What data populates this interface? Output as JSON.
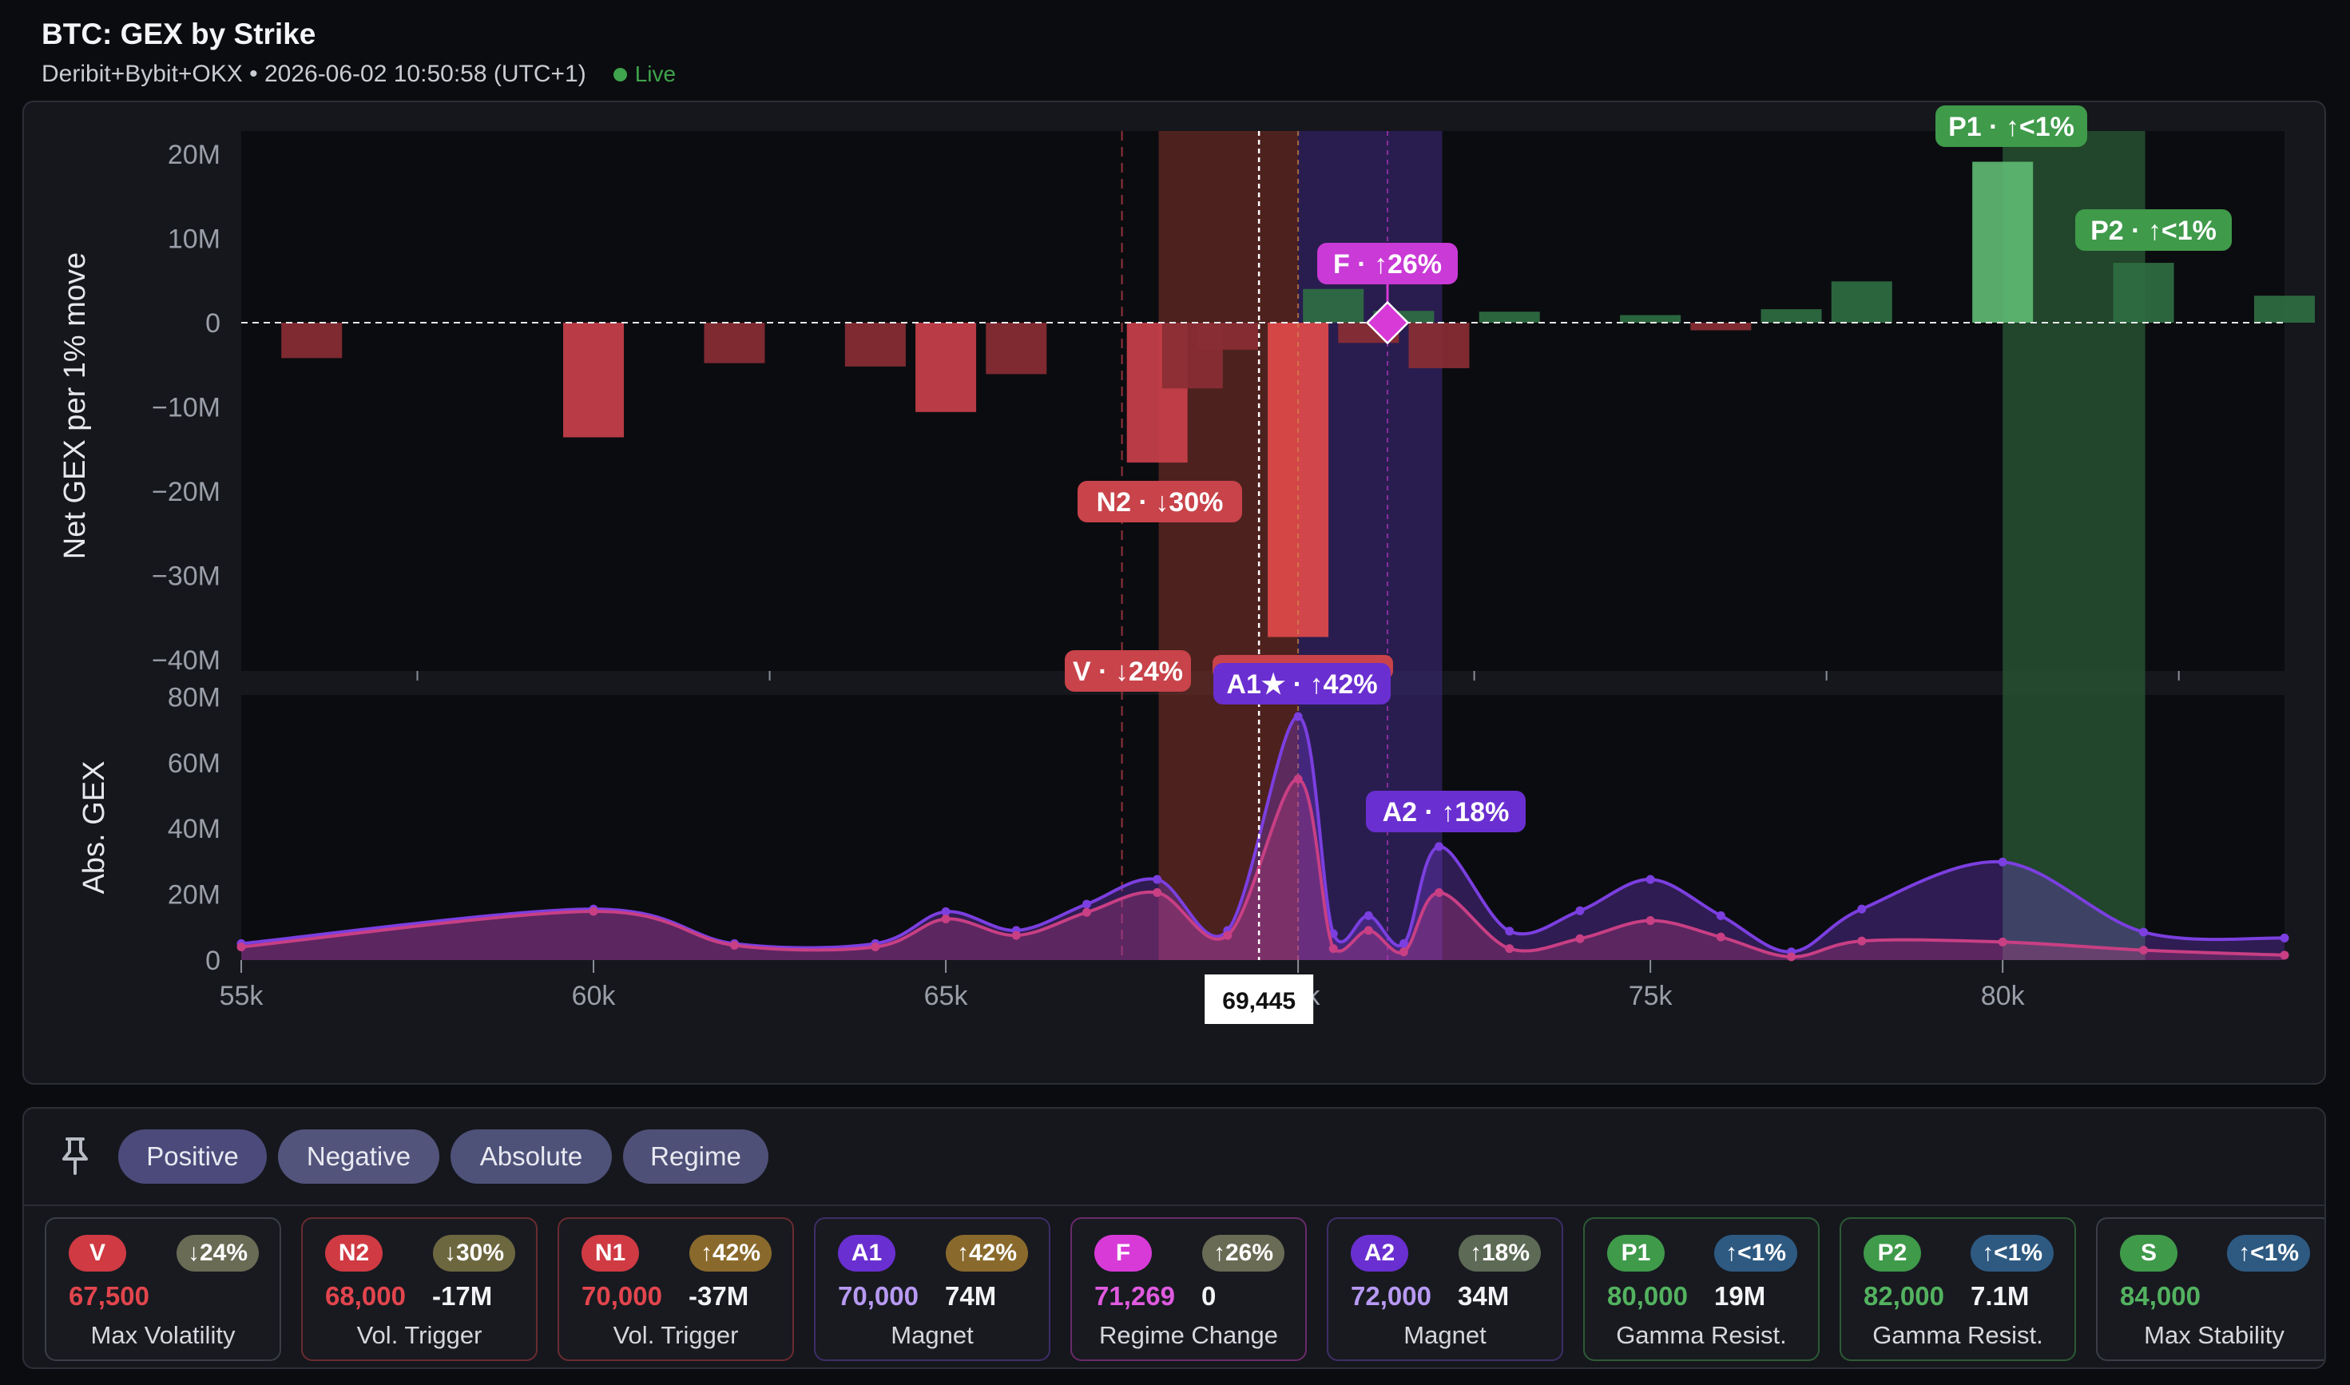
{
  "header": {
    "title": "BTC: GEX by Strike",
    "subtitle": "Deribit+Bybit+OKX • 2026-06-02 10:50:58 (UTC+1)",
    "live_label": "Live"
  },
  "chart_data": [
    {
      "type": "bar",
      "ylabel": "Net GEX per 1% move",
      "ylim": [
        -40000000,
        23000000
      ],
      "yticks": [
        "20M",
        "10M",
        "0",
        "−10M",
        "−20M",
        "−30M",
        "−40M"
      ],
      "xlim": [
        55000,
        84000
      ],
      "bars": [
        {
          "strike": 56000,
          "value": -4200000
        },
        {
          "strike": 60000,
          "value": -13600000
        },
        {
          "strike": 62000,
          "value": -4800000
        },
        {
          "strike": 64000,
          "value": -5200000
        },
        {
          "strike": 65000,
          "value": -10600000
        },
        {
          "strike": 66000,
          "value": -6100000
        },
        {
          "strike": 68000,
          "value": -16600000
        },
        {
          "strike": 68500,
          "value": -7800000
        },
        {
          "strike": 69000,
          "value": -3200000
        },
        {
          "strike": 70000,
          "value": -37300000
        },
        {
          "strike": 70500,
          "value": 4000000
        },
        {
          "strike": 71000,
          "value": -2400000
        },
        {
          "strike": 71500,
          "value": 1400000
        },
        {
          "strike": 72000,
          "value": -5400000
        },
        {
          "strike": 73000,
          "value": 1300000
        },
        {
          "strike": 75000,
          "value": 900000
        },
        {
          "strike": 76000,
          "value": -900000
        },
        {
          "strike": 77000,
          "value": 1600000
        },
        {
          "strike": 78000,
          "value": 4900000
        },
        {
          "strike": 80000,
          "value": 19100000
        },
        {
          "strike": 82000,
          "value": 7100000
        },
        {
          "strike": 84000,
          "value": 3200000
        }
      ],
      "annotations": [
        {
          "label": "P1 · ↑<1%",
          "strike": 80000,
          "color": "#3f9a4a"
        },
        {
          "label": "P2 · ↑<1%",
          "strike": 82000,
          "color": "#3f9a4a"
        },
        {
          "label": "F · ↑26%",
          "strike": 71269,
          "color": "#c93ad6"
        },
        {
          "label": "N2 · ↓30%",
          "strike": 68000,
          "color": "#c8434a"
        }
      ]
    },
    {
      "type": "area",
      "ylabel": "Abs. GEX",
      "ylim": [
        0,
        80000000
      ],
      "yticks": [
        "80M",
        "60M",
        "40M",
        "20M",
        "0"
      ],
      "xticks": [
        "55k",
        "60k",
        "65k",
        "70k",
        "75k",
        "80k"
      ],
      "series": [
        {
          "color": "#7b3fe0",
          "x": [
            55000,
            60000,
            62000,
            64000,
            65000,
            66000,
            67000,
            68000,
            69000,
            70000,
            70500,
            71000,
            71500,
            72000,
            73000,
            74000,
            75000,
            76000,
            77000,
            78000,
            80000,
            82000,
            84000
          ],
          "y": [
            5000000,
            15500000,
            5000000,
            5000000,
            14700000,
            9000000,
            17000000,
            24500000,
            9000000,
            74000000,
            8000000,
            13500000,
            5000000,
            34500000,
            8800000,
            15000000,
            24500000,
            13500000,
            2500000,
            15500000,
            29800000,
            8500000,
            6700000
          ]
        },
        {
          "color": "#c83f84",
          "x": [
            55000,
            60000,
            62000,
            64000,
            65000,
            66000,
            67000,
            68000,
            69000,
            70000,
            70500,
            71000,
            71500,
            72000,
            73000,
            74000,
            75000,
            76000,
            77000,
            78000,
            80000,
            82000,
            84000
          ],
          "y": [
            4000000,
            14800000,
            4500000,
            4000000,
            12500000,
            7500000,
            14500000,
            20500000,
            7500000,
            55000000,
            3500000,
            9000000,
            2500000,
            20500000,
            3500000,
            6500000,
            12000000,
            7000000,
            1000000,
            5800000,
            5500000,
            3000000,
            1500000
          ]
        }
      ],
      "annotations": [
        {
          "label": "V · ↓24%",
          "strike": 67500,
          "color": "#c8434a"
        },
        {
          "label": "A1★ · ↑42%",
          "strike": 70000,
          "color": "#6a2fd0"
        },
        {
          "label": "A2 · ↑18%",
          "strike": 72000,
          "color": "#6a2fd0"
        }
      ]
    }
  ],
  "spot": {
    "label": "69,445",
    "value": 69445
  },
  "filters": [
    "Positive",
    "Negative",
    "Absolute",
    "Regime"
  ],
  "levels": [
    {
      "code": "V",
      "pct": "↓24%",
      "strike": "67,500",
      "value": "",
      "desc": "Max Volatility",
      "code_bg": "#d03a43",
      "pct_bg": "#6a6b55",
      "strike_color": "#e2454d",
      "border": "#3a3d46"
    },
    {
      "code": "N2",
      "pct": "↓30%",
      "strike": "68,000",
      "value": "-17M",
      "desc": "Vol. Trigger",
      "code_bg": "#d03a43",
      "pct_bg": "#6d6740",
      "strike_color": "#e2454d",
      "border": "#6a2b30"
    },
    {
      "code": "N1",
      "pct": "↑42%",
      "strike": "70,000",
      "value": "-37M",
      "desc": "Vol. Trigger",
      "code_bg": "#d03a43",
      "pct_bg": "#8a6a2c",
      "strike_color": "#e2454d",
      "border": "#6a2b30"
    },
    {
      "code": "A1",
      "pct": "↑42%",
      "strike": "70,000",
      "value": "74M",
      "desc": "Magnet",
      "code_bg": "#6a2fd0",
      "pct_bg": "#8a6a2c",
      "strike_color": "#b799f2",
      "border": "#3e2d66"
    },
    {
      "code": "F",
      "pct": "↑26%",
      "strike": "71,269",
      "value": "0",
      "desc": "Regime Change",
      "code_bg": "#d83ad8",
      "pct_bg": "#6a6b55",
      "strike_color": "#e05ae0",
      "border": "#6a2a6a"
    },
    {
      "code": "A2",
      "pct": "↑18%",
      "strike": "72,000",
      "value": "34M",
      "desc": "Magnet",
      "code_bg": "#6a2fd0",
      "pct_bg": "#5d6a55",
      "strike_color": "#b799f2",
      "border": "#3e2d66"
    },
    {
      "code": "P1",
      "pct": "↑<1%",
      "strike": "80,000",
      "value": "19M",
      "desc": "Gamma Resist.",
      "code_bg": "#3f9a4a",
      "pct_bg": "#2e5a82",
      "strike_color": "#53b25f",
      "border": "#2d5a35"
    },
    {
      "code": "P2",
      "pct": "↑<1%",
      "strike": "82,000",
      "value": "7.1M",
      "desc": "Gamma Resist.",
      "code_bg": "#3f9a4a",
      "pct_bg": "#2e5a82",
      "strike_color": "#53b25f",
      "border": "#2d5a35"
    },
    {
      "code": "S",
      "pct": "↑<1%",
      "strike": "84,000",
      "value": "",
      "desc": "Max Stability",
      "code_bg": "#3f9a4a",
      "pct_bg": "#2e5a82",
      "strike_color": "#53b25f",
      "border": "#3a3d46"
    }
  ]
}
